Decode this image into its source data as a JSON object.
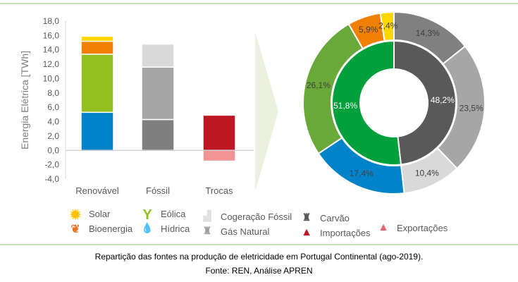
{
  "chart_data": [
    {
      "type": "bar",
      "stacked": true,
      "ylabel": "Energia Elétrica [TWh]",
      "ylim": [
        -4,
        18
      ],
      "yticks": [
        "18,0",
        "16,0",
        "14,0",
        "12,0",
        "10,0",
        "8,0",
        "6,0",
        "4,0",
        "2,0",
        "0,0",
        "-2,0",
        "-4,0"
      ],
      "categories": [
        "Renovável",
        "Fóssil",
        "Trocas"
      ],
      "series": [
        {
          "name": "Hídrica",
          "color": "#0083c8",
          "values": [
            5.3,
            0,
            0
          ]
        },
        {
          "name": "Eólica",
          "color": "#93c01f",
          "values": [
            8.1,
            0,
            0
          ]
        },
        {
          "name": "Bioenergia",
          "color": "#f08000",
          "values": [
            1.8,
            0,
            0
          ]
        },
        {
          "name": "Solar",
          "color": "#ffd700",
          "values": [
            0.7,
            0,
            0
          ]
        },
        {
          "name": "Carvão",
          "color": "#7f7f7f",
          "values": [
            0,
            4.3,
            0
          ]
        },
        {
          "name": "Gás Natural",
          "color": "#a6a6a6",
          "values": [
            0,
            7.3,
            0
          ]
        },
        {
          "name": "Cogeração Fóssil",
          "color": "#d9d9d9",
          "values": [
            0,
            3.2,
            0
          ]
        },
        {
          "name": "Importações",
          "color": "#be1622",
          "values": [
            0,
            0,
            4.9
          ]
        },
        {
          "name": "Exportações",
          "color": "#f29494",
          "values": [
            0,
            0,
            -1.5
          ]
        }
      ]
    },
    {
      "type": "pie",
      "donut": true,
      "outer": [
        {
          "name": "Carvão",
          "value": 14.3,
          "label": "14,3%",
          "color": "#808080"
        },
        {
          "name": "Gás Natural",
          "value": 23.5,
          "label": "23,5%",
          "color": "#a6a6a6"
        },
        {
          "name": "Cogeração Fóssil",
          "value": 10.4,
          "label": "10,4%",
          "color": "#d9d9d9"
        },
        {
          "name": "Hídrica",
          "value": 17.4,
          "label": "17,4%",
          "color": "#0083c8"
        },
        {
          "name": "Eólica",
          "value": 26.1,
          "label": "26,1%",
          "color": "#6aa83a"
        },
        {
          "name": "Bioenergia",
          "value": 5.9,
          "label": "5,9%",
          "color": "#f08000"
        },
        {
          "name": "Solar",
          "value": 2.4,
          "label": "2,4%",
          "color": "#ffd700"
        }
      ],
      "inner": [
        {
          "name": "Fóssil",
          "value": 48.2,
          "label": "48,2%",
          "color": "#595959"
        },
        {
          "name": "Renovável",
          "value": 51.8,
          "label": "51,8%",
          "color": "#00a03c"
        }
      ]
    }
  ],
  "legend": [
    {
      "label": "Solar",
      "icon": "sun-icon"
    },
    {
      "label": "Bioenergia",
      "icon": "bioenergy-icon"
    },
    {
      "label": "Eólica",
      "icon": "wind-turbine-icon"
    },
    {
      "label": "Hídrica",
      "icon": "water-drop-icon"
    },
    {
      "label": "Cogeração Fóssil",
      "icon": "factory-icon"
    },
    {
      "label": "Gás Natural",
      "icon": "gas-plant-icon"
    },
    {
      "label": "Carvão",
      "icon": "coal-plant-icon"
    },
    {
      "label": "Importações",
      "icon": "import-triangle-icon"
    },
    {
      "label": "Exportações",
      "icon": "export-triangle-icon"
    }
  ],
  "caption": "Repartição das fontes na produção de eletricidade em Portugal Continental (ago-2019).",
  "source": "Fonte: REN, Análise APREN"
}
